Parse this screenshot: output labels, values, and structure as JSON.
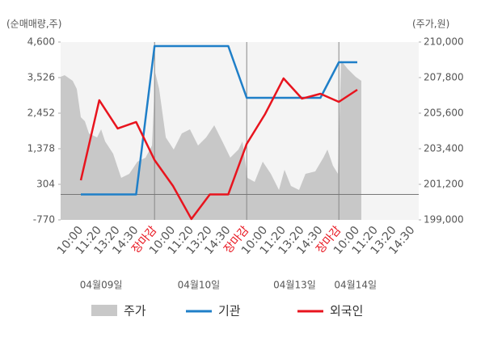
{
  "chart_data": {
    "type": "line",
    "y_label": "(순매매량,주)",
    "y2_label": "(주가,원)",
    "categories": [
      "10:00",
      "11:20",
      "13:20",
      "14:30",
      "장마감",
      "10:00",
      "11:20",
      "13:20",
      "14:30",
      "장마감",
      "10:00",
      "11:20",
      "13:20",
      "14:30",
      "장마감",
      "10:00",
      "11:20",
      "13:20",
      "14:30"
    ],
    "dates": [
      "04월09일",
      "04월10일",
      "04월13일",
      "04월14일"
    ],
    "ylim": [
      -770,
      4600
    ],
    "yticks": [
      {
        "value": 4600,
        "label": "4,600"
      },
      {
        "value": 3526,
        "label": "3,526"
      },
      {
        "value": 2452,
        "label": "2,452"
      },
      {
        "value": 1378,
        "label": "1,378"
      },
      304,
      {
        "value": -770,
        "label": "-770"
      }
    ],
    "y2lim": [
      199000,
      210000
    ],
    "y2ticks": [
      {
        "value": 210000,
        "label": "210,000"
      },
      {
        "value": 207800,
        "label": "207,800"
      },
      {
        "value": 205600,
        "label": "205,600"
      },
      {
        "value": 203400,
        "label": "203,400"
      },
      {
        "value": 201200,
        "label": "201,200"
      },
      {
        "value": 199000,
        "label": "199,000"
      }
    ],
    "series": [
      {
        "name": "주가",
        "type": "area",
        "axis": "y2",
        "color": "#c8c8c8",
        "x": [
          -1.1,
          -0.88,
          -0.44,
          -0.22,
          0,
          0.22,
          0.44,
          0.88,
          1.1,
          1.32,
          1.75,
          2.19,
          2.63,
          3.07,
          3.51,
          3.86,
          4.04,
          4.25,
          4.61,
          5.04,
          5.48,
          5.92,
          6.36,
          6.8,
          7.24,
          7.68,
          8.11,
          8.55,
          8.77,
          9.04,
          9.43,
          9.87,
          10.31,
          10.75,
          11.05,
          11.4,
          11.84,
          12.19,
          12.72,
          13.16,
          13.38,
          13.68,
          13.95,
          14.12,
          14.47,
          14.91,
          15.22
        ],
        "values": [
          207850,
          207950,
          207600,
          207100,
          205350,
          205100,
          204350,
          204100,
          204600,
          203850,
          203100,
          201600,
          201850,
          202600,
          202850,
          203600,
          208100,
          207100,
          204100,
          203350,
          204350,
          204600,
          203600,
          204100,
          204850,
          203850,
          202850,
          203350,
          203850,
          201600,
          201350,
          202600,
          201850,
          200850,
          202100,
          201100,
          200850,
          201850,
          202000,
          202850,
          203350,
          202350,
          201850,
          208850,
          208350,
          207850,
          207600
        ]
      },
      {
        "name": "기관",
        "type": "line",
        "color": "#1f7fc8",
        "values": [
          0,
          0,
          0,
          0,
          4478,
          4478,
          4478,
          4478,
          4478,
          2916,
          2916,
          2916,
          2916,
          2916,
          3990,
          3990,
          null,
          null,
          null
        ]
      },
      {
        "name": "외국인",
        "type": "line",
        "color": "#e8141e",
        "values": [
          426,
          2843,
          1989,
          2184,
          1037,
          256,
          -744,
          0,
          0,
          1525,
          2428,
          3502,
          2892,
          3038,
          2794,
          3160,
          null,
          null,
          null
        ]
      }
    ]
  }
}
